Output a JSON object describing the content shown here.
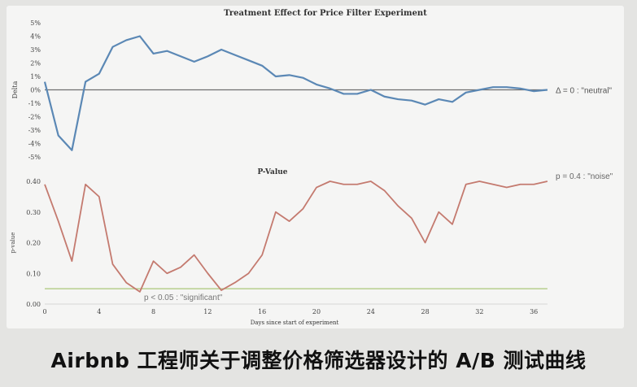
{
  "caption": "Airbnb 工程师关于调整价格筛选器设计的 A/B 测试曲线",
  "colors": {
    "delta_line": "#5b88b5",
    "pvalue_line": "#c47a6f",
    "zero_line": "#6f6f6f",
    "significance_line": "#b8cf8e",
    "background": "#e4e4e2",
    "card": "#f5f5f4"
  },
  "chart_data": [
    {
      "type": "line",
      "title": "Treatment Effect for Price Filter Experiment",
      "xlabel": "",
      "ylabel": "Delta",
      "ylim": [
        -5,
        5
      ],
      "y_ticks": [
        "5%",
        "4%",
        "3%",
        "2%",
        "1%",
        "0%",
        "-1%",
        "-2%",
        "-3%",
        "-4%",
        "-5%"
      ],
      "reference_line": {
        "y": 0,
        "label": "Δ = 0 : \"neutral\""
      },
      "x": [
        0,
        1,
        2,
        3,
        4,
        5,
        6,
        7,
        8,
        9,
        10,
        11,
        12,
        13,
        14,
        15,
        16,
        17,
        18,
        19,
        20,
        21,
        22,
        23,
        24,
        25,
        26,
        27,
        28,
        29,
        30,
        31,
        32,
        33,
        34,
        35,
        36,
        37
      ],
      "series": [
        {
          "name": "Delta (%)",
          "values": [
            0.6,
            -3.4,
            -4.5,
            0.6,
            1.2,
            3.2,
            3.7,
            4.0,
            2.7,
            2.9,
            2.5,
            2.1,
            2.5,
            3.0,
            2.6,
            2.2,
            1.8,
            1.0,
            1.1,
            0.9,
            0.4,
            0.1,
            -0.3,
            -0.3,
            0.0,
            -0.5,
            -0.7,
            -0.8,
            -1.1,
            -0.7,
            -0.9,
            -0.2,
            0.0,
            0.2,
            0.2,
            0.1,
            -0.1,
            0.0
          ]
        }
      ],
      "grid": false
    },
    {
      "type": "line",
      "title": "P-Value",
      "xlabel": "Days since start of experiment",
      "ylabel": "p-value",
      "ylim": [
        0,
        0.4
      ],
      "y_ticks": [
        "0.40",
        "0.30",
        "0.20",
        "0.10",
        "0.00"
      ],
      "x_ticks": [
        "0",
        "4",
        "8",
        "12",
        "16",
        "20",
        "24",
        "28",
        "32",
        "36"
      ],
      "reference_line": {
        "y": 0.05,
        "label": "p < 0.05 : \"significant\""
      },
      "annotation": "p = 0.4 : \"noise\"",
      "x": [
        0,
        1,
        2,
        3,
        4,
        5,
        6,
        7,
        8,
        9,
        10,
        11,
        12,
        13,
        14,
        15,
        16,
        17,
        18,
        19,
        20,
        21,
        22,
        23,
        24,
        25,
        26,
        27,
        28,
        29,
        30,
        31,
        32,
        33,
        34,
        35,
        36,
        37
      ],
      "series": [
        {
          "name": "p-value",
          "values": [
            0.39,
            0.27,
            0.14,
            0.39,
            0.35,
            0.13,
            0.07,
            0.04,
            0.14,
            0.1,
            0.12,
            0.16,
            0.1,
            0.045,
            0.07,
            0.1,
            0.16,
            0.3,
            0.27,
            0.31,
            0.38,
            0.4,
            0.39,
            0.39,
            0.4,
            0.37,
            0.32,
            0.28,
            0.2,
            0.3,
            0.26,
            0.39,
            0.4,
            0.39,
            0.38,
            0.39,
            0.39,
            0.4
          ]
        }
      ],
      "grid": false
    }
  ]
}
